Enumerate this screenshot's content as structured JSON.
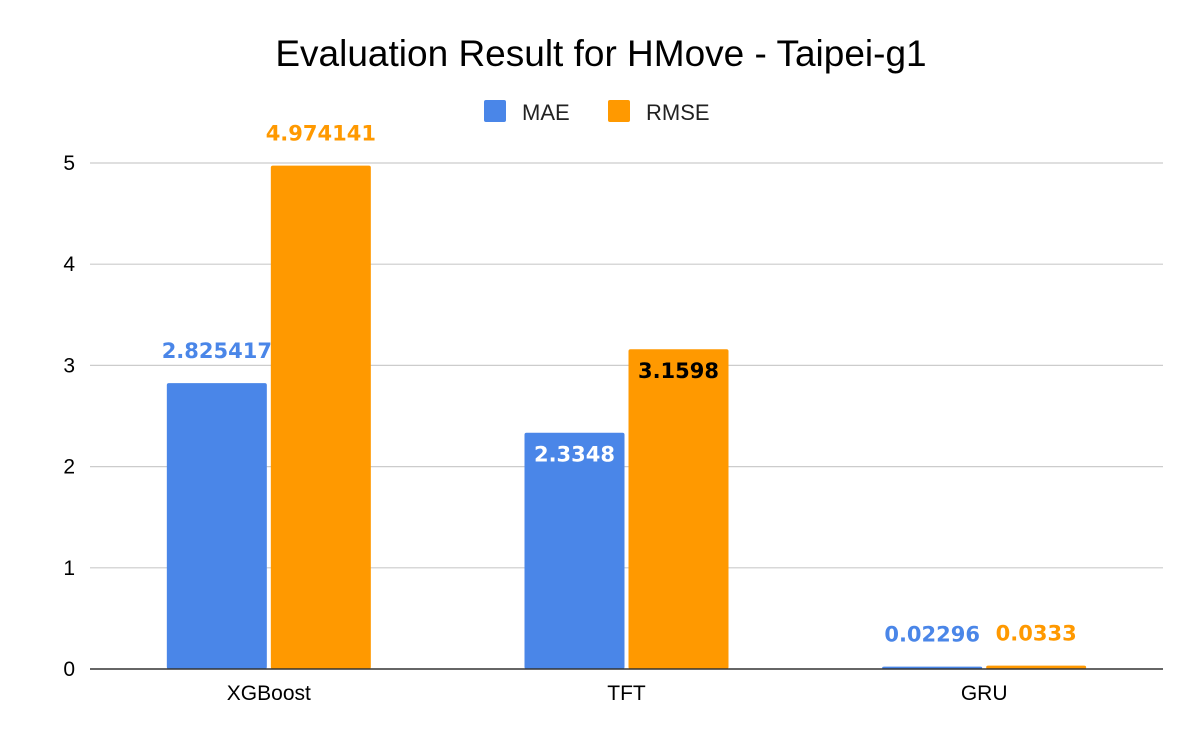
{
  "chart_data": {
    "type": "bar",
    "title": "Evaluation Result for HMove  - Taipei-g1",
    "xlabel": "",
    "ylabel": "",
    "categories": [
      "XGBoost",
      "TFT",
      "GRU"
    ],
    "ylim": [
      0,
      5
    ],
    "yticks": [
      "0",
      "1",
      "2",
      "3",
      "4",
      "5"
    ],
    "grid": true,
    "legend_position": "top-center",
    "series": [
      {
        "name": "MAE",
        "color": "#4a86e8",
        "values": [
          2.825417,
          2.3348,
          0.02296
        ],
        "labels": [
          "2.825417",
          "2.3348",
          "0.02296"
        ],
        "label_colors": [
          "#4a86e8",
          "#ffffff",
          "#4a86e8"
        ],
        "label_inside": [
          false,
          true,
          false
        ]
      },
      {
        "name": "RMSE",
        "color": "#ff9900",
        "values": [
          4.974141,
          3.1598,
          0.0333
        ],
        "labels": [
          "4.974141",
          "3.1598",
          "0.0333"
        ],
        "label_colors": [
          "#ff9900",
          "#000000",
          "#ff9900"
        ],
        "label_inside": [
          false,
          true,
          false
        ]
      }
    ]
  }
}
